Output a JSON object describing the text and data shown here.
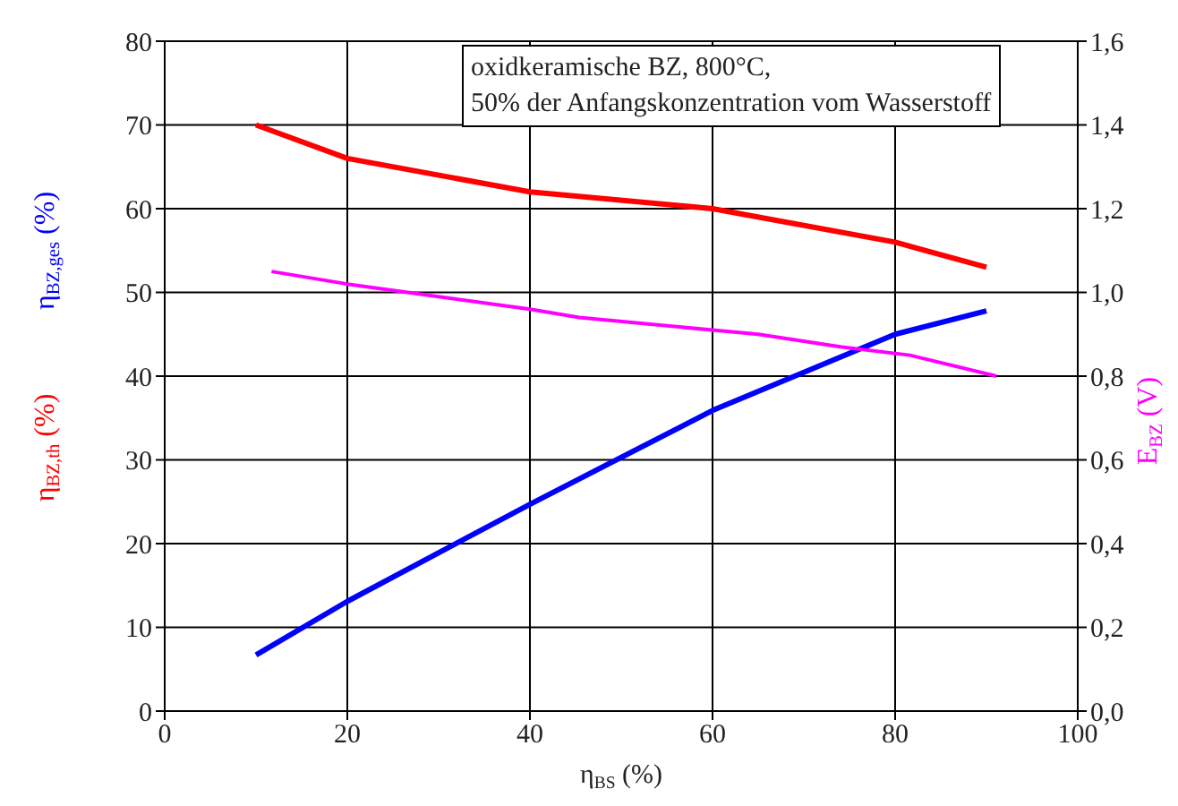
{
  "chart_data": {
    "type": "line",
    "xlabel": "η$_{BS}$ (%)",
    "y2label": "E$_{BZ}$ (V)",
    "annotations": [
      "oxidkeramische BZ, 800°C,",
      "50% der Anfangskonzentration vom Wasserstoff"
    ],
    "series": [
      {
        "name": "η$_{BZ,th}$ (%)",
        "color": "#ff0000",
        "x": [
          10,
          20,
          40,
          60,
          80,
          90
        ],
        "values": [
          70,
          66,
          62,
          60,
          56,
          53
        ]
      },
      {
        "name": "η$_{BZ,ges}$ (%)",
        "color": "#0000ff",
        "x": [
          10,
          20,
          40,
          60,
          80,
          90
        ],
        "values": [
          6.7,
          13.1,
          24.7,
          35.9,
          45,
          47.8
        ]
      },
      {
        "color": "#ff00ff",
        "axis": "y2",
        "x": [
          11.7,
          20,
          40,
          45.4,
          60,
          65,
          74,
          81.6,
          91.1
        ],
        "values": [
          1.05,
          1.02,
          0.96,
          0.94,
          0.91,
          0.9,
          0.87,
          0.85,
          0.8
        ]
      }
    ],
    "xlim": [
      0,
      100
    ],
    "xticks": [
      0,
      20,
      40,
      60,
      80,
      100
    ],
    "ylim": [
      0,
      80
    ],
    "yticks": [
      0,
      10,
      20,
      30,
      40,
      50,
      60,
      70,
      80
    ],
    "y2lim": [
      0,
      1.6
    ],
    "y2ticks": [
      {
        "value": 0,
        "label": "0,0"
      },
      {
        "value": 0.2,
        "label": "0,2"
      },
      {
        "value": 0.4,
        "label": "0,4"
      },
      {
        "value": 0.6,
        "label": "0,6"
      },
      {
        "value": 0.8,
        "label": "0,8"
      },
      {
        "value": 1,
        "label": "1,0"
      },
      {
        "value": 1.2,
        "label": "1,2"
      },
      {
        "value": 1.4,
        "label": "1,4"
      },
      {
        "value": 1.6,
        "label": "1,6"
      }
    ],
    "grid": true,
    "marker": "none",
    "line_style": "solid"
  }
}
